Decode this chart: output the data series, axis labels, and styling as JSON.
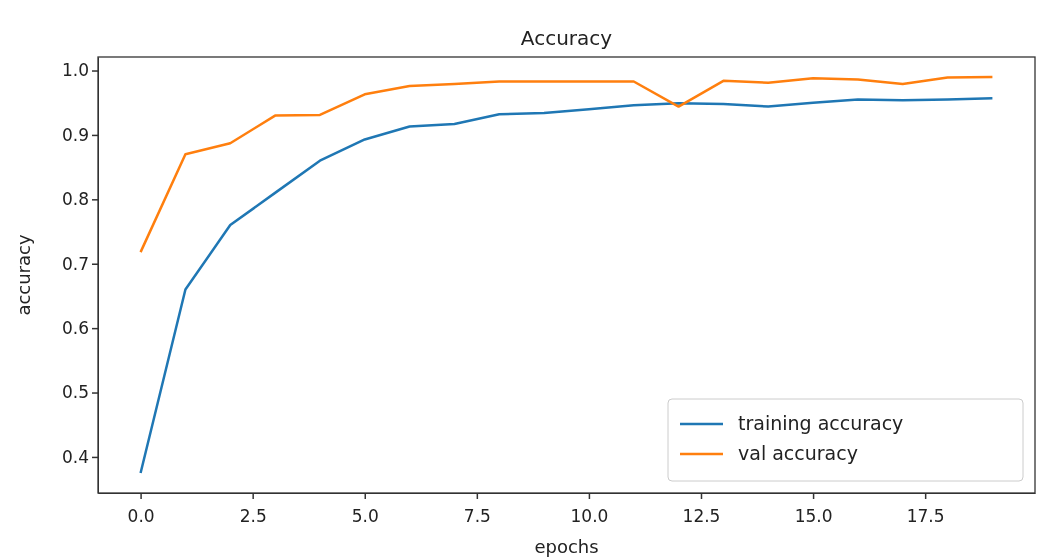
{
  "chart_data": {
    "type": "line",
    "title": "Accuracy",
    "xlabel": "epochs",
    "ylabel": "accuracy",
    "x": [
      0,
      1,
      2,
      3,
      4,
      5,
      6,
      7,
      8,
      9,
      10,
      11,
      12,
      13,
      14,
      15,
      16,
      17,
      18,
      19
    ],
    "series": [
      {
        "name": "training accuracy",
        "color": "#1f77b4",
        "values": [
          0.375,
          0.66,
          0.76,
          0.81,
          0.86,
          0.893,
          0.913,
          0.917,
          0.932,
          0.934,
          0.94,
          0.946,
          0.949,
          0.948,
          0.944,
          0.95,
          0.955,
          0.954,
          0.955,
          0.957
        ]
      },
      {
        "name": "val accuracy",
        "color": "#ff7f0e",
        "values": [
          0.718,
          0.87,
          0.887,
          0.93,
          0.931,
          0.963,
          0.976,
          0.979,
          0.983,
          0.983,
          0.983,
          0.983,
          0.944,
          0.984,
          0.981,
          0.988,
          0.986,
          0.979,
          0.989,
          0.99
        ]
      }
    ],
    "xlim": [
      -0.95,
      19.95
    ],
    "xticks": [
      {
        "value": 0,
        "label": "0.0"
      },
      {
        "value": 2.5,
        "label": "2.5"
      },
      {
        "value": 5,
        "label": "5.0"
      },
      {
        "value": 7.5,
        "label": "7.5"
      },
      {
        "value": 10,
        "label": "10.0"
      },
      {
        "value": 12.5,
        "label": "12.5"
      },
      {
        "value": 15,
        "label": "15.0"
      },
      {
        "value": 17.5,
        "label": "17.5"
      }
    ],
    "ylim": [
      0.344,
      1.021
    ],
    "yticks": [
      0.4,
      0.5,
      0.6,
      0.7,
      0.8,
      0.9,
      {
        "value": 1,
        "label": "1.0"
      }
    ],
    "legend": "bottom right",
    "marker": "none",
    "line_style": "solid",
    "grid": false
  }
}
